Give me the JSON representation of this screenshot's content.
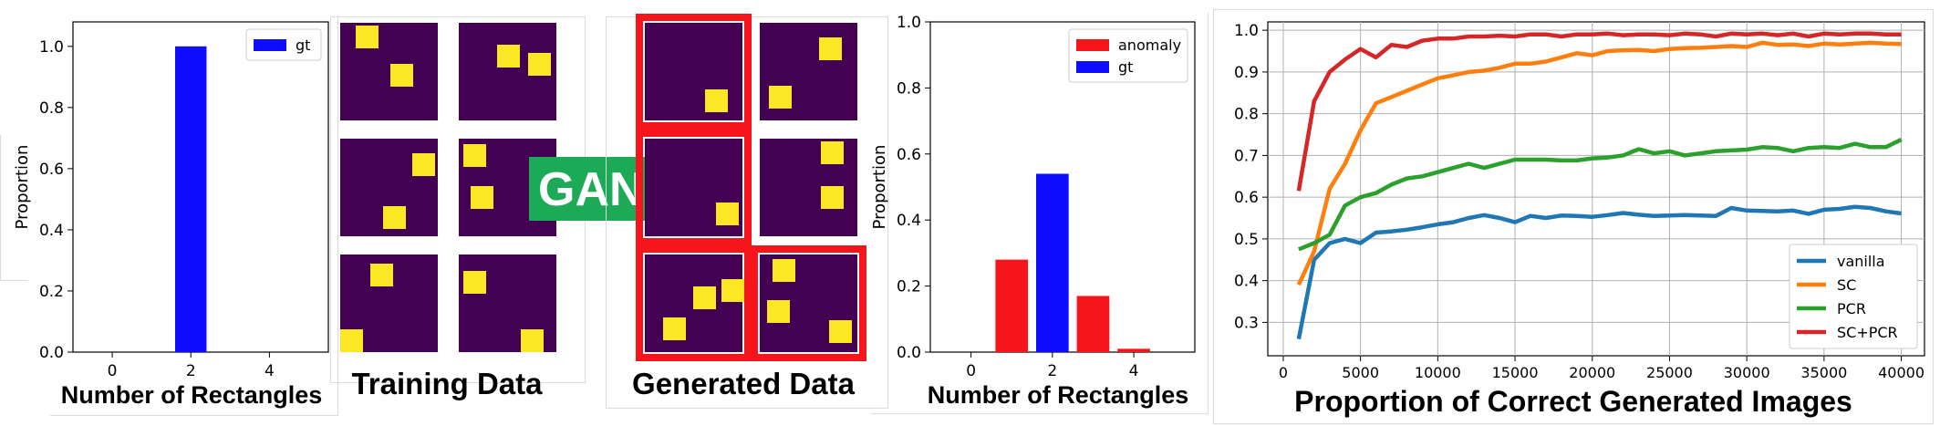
{
  "captions": {
    "left_chart": "Number of Rectangles",
    "training": "Training Data",
    "generated": "Generated Data",
    "middle_chart": "Number of Rectangles",
    "right_chart": "Proportion of Correct Generated Images"
  },
  "gan_label": "GAN",
  "colors": {
    "red": "#f5151b",
    "blue": "#0d0dff",
    "tile": "#440154",
    "square": "#fde725",
    "gan": "#1daa56"
  },
  "chart_data": [
    {
      "id": "left",
      "type": "bar",
      "ylabel": "Proportion",
      "xlabel": "Number of Rectangles",
      "xlim": [
        -1,
        5.5
      ],
      "ylim": [
        0,
        1.08
      ],
      "xticks": [
        0,
        2,
        4
      ],
      "yticks": [
        0.0,
        0.2,
        0.4,
        0.6,
        0.8,
        1.0
      ],
      "ytick_labels": [
        "0.0",
        "0.2",
        "0.4",
        "0.6",
        "0.8",
        "1.0"
      ],
      "legend": "top-right",
      "series": [
        {
          "name": "gt",
          "color": "#0d0dff",
          "bars": [
            {
              "x": 2,
              "value": 1.0
            }
          ]
        }
      ]
    },
    {
      "id": "middle",
      "type": "bar",
      "ylabel": "Proportion",
      "xlabel": "Number of Rectangles",
      "xlim": [
        -1,
        5.5
      ],
      "ylim": [
        0,
        1.0
      ],
      "xticks": [
        0,
        2,
        4
      ],
      "yticks": [
        0.0,
        0.2,
        0.4,
        0.6,
        0.8,
        1.0
      ],
      "ytick_labels": [
        "0.0",
        "0.2",
        "0.4",
        "0.6",
        "0.8",
        "1.0"
      ],
      "legend": "top-right",
      "series": [
        {
          "name": "anomaly",
          "color": "#f5151b",
          "bars": [
            {
              "x": 1,
              "value": 0.28
            },
            {
              "x": 3,
              "value": 0.17
            },
            {
              "x": 4,
              "value": 0.01
            }
          ]
        },
        {
          "name": "gt",
          "color": "#0d0dff",
          "bars": [
            {
              "x": 2,
              "value": 0.54
            }
          ]
        }
      ]
    },
    {
      "id": "right",
      "type": "line",
      "title": "Proportion of Correct Generated Images",
      "xlim": [
        -1000,
        41500
      ],
      "ylim": [
        0.22,
        1.02
      ],
      "xticks": [
        0,
        5000,
        10000,
        15000,
        20000,
        25000,
        30000,
        35000,
        40000
      ],
      "yticks": [
        0.3,
        0.4,
        0.5,
        0.6,
        0.7,
        0.8,
        0.9,
        1.0
      ],
      "ytick_labels": [
        "0.3",
        "0.4",
        "0.5",
        "0.6",
        "0.7",
        "0.8",
        "0.9",
        "1.0"
      ],
      "grid": true,
      "legend": "bottom-right",
      "x": [
        1000,
        2000,
        3000,
        4000,
        5000,
        6000,
        7000,
        8000,
        9000,
        10000,
        11000,
        12000,
        13000,
        14000,
        15000,
        16000,
        17000,
        18000,
        19000,
        20000,
        21000,
        22000,
        23000,
        24000,
        25000,
        26000,
        27000,
        28000,
        29000,
        30000,
        31000,
        32000,
        33000,
        34000,
        35000,
        36000,
        37000,
        38000,
        39000,
        40000
      ],
      "series": [
        {
          "name": "vanilla",
          "color": "#1f77b4",
          "values": [
            0.26,
            0.45,
            0.49,
            0.5,
            0.49,
            0.515,
            0.518,
            0.522,
            0.528,
            0.535,
            0.54,
            0.55,
            0.557,
            0.55,
            0.54,
            0.555,
            0.55,
            0.556,
            0.555,
            0.553,
            0.557,
            0.562,
            0.558,
            0.555,
            0.556,
            0.557,
            0.556,
            0.555,
            0.574,
            0.568,
            0.567,
            0.566,
            0.568,
            0.56,
            0.57,
            0.572,
            0.577,
            0.574,
            0.566,
            0.561
          ]
        },
        {
          "name": "SC",
          "color": "#ff7f0e",
          "values": [
            0.39,
            0.47,
            0.62,
            0.68,
            0.76,
            0.825,
            0.84,
            0.855,
            0.87,
            0.885,
            0.892,
            0.9,
            0.903,
            0.91,
            0.92,
            0.92,
            0.925,
            0.935,
            0.945,
            0.94,
            0.95,
            0.952,
            0.953,
            0.95,
            0.955,
            0.957,
            0.958,
            0.96,
            0.962,
            0.96,
            0.97,
            0.965,
            0.966,
            0.962,
            0.968,
            0.966,
            0.968,
            0.97,
            0.968,
            0.967
          ]
        },
        {
          "name": "PCR",
          "color": "#2ca02c",
          "values": [
            0.475,
            0.49,
            0.51,
            0.58,
            0.6,
            0.61,
            0.63,
            0.645,
            0.65,
            0.66,
            0.67,
            0.68,
            0.67,
            0.68,
            0.69,
            0.69,
            0.69,
            0.688,
            0.688,
            0.693,
            0.695,
            0.7,
            0.715,
            0.705,
            0.71,
            0.7,
            0.705,
            0.71,
            0.712,
            0.714,
            0.72,
            0.718,
            0.71,
            0.718,
            0.72,
            0.718,
            0.728,
            0.72,
            0.72,
            0.738
          ]
        },
        {
          "name": "SC+PCR",
          "color": "#d62728",
          "values": [
            0.615,
            0.83,
            0.9,
            0.93,
            0.955,
            0.935,
            0.965,
            0.96,
            0.975,
            0.98,
            0.98,
            0.985,
            0.985,
            0.987,
            0.985,
            0.99,
            0.99,
            0.985,
            0.99,
            0.99,
            0.992,
            0.988,
            0.99,
            0.99,
            0.988,
            0.992,
            0.99,
            0.985,
            0.992,
            0.99,
            0.992,
            0.988,
            0.992,
            0.985,
            0.992,
            0.99,
            0.992,
            0.992,
            0.99,
            0.99
          ]
        }
      ]
    }
  ]
}
